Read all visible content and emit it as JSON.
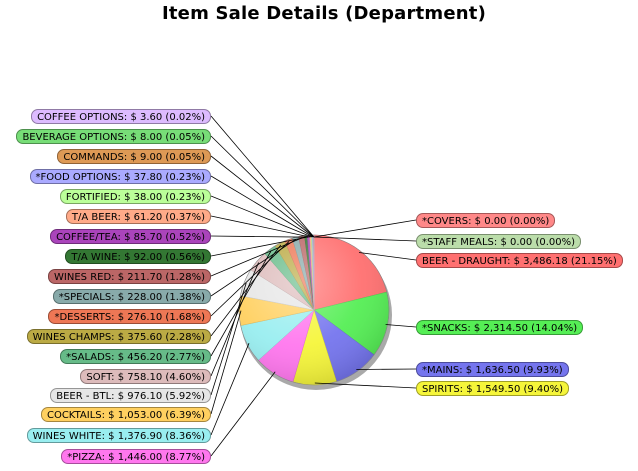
{
  "chart_data": {
    "type": "pie",
    "title": "Item Sale Details (Department)",
    "slices": [
      {
        "label": "BEER - DRAUGHT",
        "amount": "$ 3,486.18",
        "pct": "(21.15%)",
        "value": 21.15,
        "color": "#ff7070"
      },
      {
        "label": "*SNACKS",
        "amount": "$ 2,314.50",
        "pct": "(14.04%)",
        "value": 14.04,
        "color": "#55ee55"
      },
      {
        "label": "*MAINS",
        "amount": "$ 1,636.50",
        "pct": "(9.93%)",
        "value": 9.93,
        "color": "#7575ee"
      },
      {
        "label": "SPIRITS",
        "amount": "$ 1,549.50",
        "pct": "(9.40%)",
        "value": 9.4,
        "color": "#f5f53a"
      },
      {
        "label": "*PIZZA",
        "amount": "$ 1,446.00",
        "pct": "(8.77%)",
        "value": 8.77,
        "color": "#ff77ee"
      },
      {
        "label": "WINES WHITE",
        "amount": "$ 1,376.90",
        "pct": "(8.36%)",
        "value": 8.36,
        "color": "#99eef0"
      },
      {
        "label": "COCKTAILS",
        "amount": "$ 1,053.00",
        "pct": "(6.39%)",
        "value": 6.39,
        "color": "#ffd060"
      },
      {
        "label": "BEER - BTL",
        "amount": "$ 976.10",
        "pct": "(5.92%)",
        "value": 5.92,
        "color": "#e6e6e6"
      },
      {
        "label": "SOFT",
        "amount": "$ 758.10",
        "pct": "(4.60%)",
        "value": 4.6,
        "color": "#ddbbbb"
      },
      {
        "label": "*SALADS",
        "amount": "$ 456.20",
        "pct": "(2.77%)",
        "value": 2.77,
        "color": "#66bb88"
      },
      {
        "label": "WINES CHAMPS",
        "amount": "$ 375.60",
        "pct": "(2.28%)",
        "value": 2.28,
        "color": "#bbaa44"
      },
      {
        "label": "*DESSERTS",
        "amount": "$ 276.10",
        "pct": "(1.68%)",
        "value": 1.68,
        "color": "#ee7755"
      },
      {
        "label": "*SPECIALS",
        "amount": "$ 228.00",
        "pct": "(1.38%)",
        "value": 1.38,
        "color": "#88aaaa"
      },
      {
        "label": "WINES RED",
        "amount": "$ 211.70",
        "pct": "(1.28%)",
        "value": 1.28,
        "color": "#bb6666"
      },
      {
        "label": "T/A WINE",
        "amount": "$ 92.00",
        "pct": "(0.56%)",
        "value": 0.56,
        "color": "#337733"
      },
      {
        "label": "COFFEE/TEA",
        "amount": "$ 85.70",
        "pct": "(0.52%)",
        "value": 0.52,
        "color": "#aa44bb"
      },
      {
        "label": "T/A BEER",
        "amount": "$ 61.20",
        "pct": "(0.37%)",
        "value": 0.37,
        "color": "#ffaa88"
      },
      {
        "label": "FORTIFIED",
        "amount": "$ 38.00",
        "pct": "(0.23%)",
        "value": 0.23,
        "color": "#bbff99"
      },
      {
        "label": "*FOOD OPTIONS",
        "amount": "$ 37.80",
        "pct": "(0.23%)",
        "value": 0.23,
        "color": "#aaaaff"
      },
      {
        "label": "COMMANDS",
        "amount": "$ 9.00",
        "pct": "(0.05%)",
        "value": 0.05,
        "color": "#dd9955"
      },
      {
        "label": "BEVERAGE OPTIONS",
        "amount": "$ 8.00",
        "pct": "(0.05%)",
        "value": 0.05,
        "color": "#77dd77"
      },
      {
        "label": "COFFEE OPTIONS",
        "amount": "$ 3.60",
        "pct": "(0.02%)",
        "value": 0.02,
        "color": "#ddbbff"
      },
      {
        "label": "*COVERS",
        "amount": "$ 0.00",
        "pct": "(0.00%)",
        "value": 0.0,
        "color": "#ff8888"
      },
      {
        "label": "*STAFF MEALS",
        "amount": "$ 0.00",
        "pct": "(0.00%)",
        "value": 0.0,
        "color": "#bbddaa"
      }
    ]
  }
}
